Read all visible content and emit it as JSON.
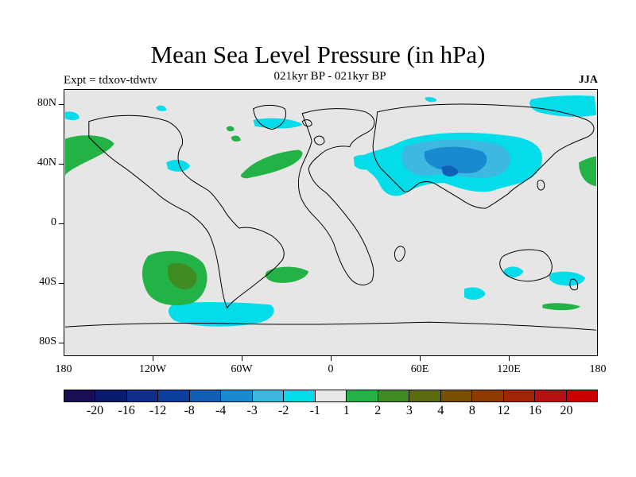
{
  "title": "Mean Sea Level Pressure (in hPa)",
  "experiment_label": "Expt = tdxov-tdwtv",
  "period_label": "021kyr BP - 021kyr BP",
  "season_label": "JJA",
  "map": {
    "projection": "cylindrical-equidistant",
    "lon_range": [
      -180,
      180
    ],
    "lat_range": [
      -90,
      90
    ],
    "background_color": "#e6e6e6",
    "coastline_color": "#000000"
  },
  "axes": {
    "y_ticks": [
      "80N",
      "40N",
      "0",
      "40S",
      "80S"
    ],
    "x_ticks": [
      "180",
      "120W",
      "60W",
      "0",
      "60E",
      "120E",
      "180"
    ]
  },
  "colorbar": {
    "colors": [
      "#1a0f55",
      "#0a1a70",
      "#0f2f8a",
      "#0a3fa0",
      "#1060b8",
      "#1a8ad0",
      "#3db8e0",
      "#05dcea",
      "#e8e8e8",
      "#23b245",
      "#3e8b22",
      "#5c6a10",
      "#7a4f06",
      "#8f3a02",
      "#a02508",
      "#b81010",
      "#cc0000"
    ],
    "labels": [
      "-20",
      "-16",
      "-12",
      "-8",
      "-4",
      "-3",
      "-2",
      "-1",
      "1",
      "2",
      "3",
      "4",
      "8",
      "12",
      "16",
      "20"
    ]
  }
}
